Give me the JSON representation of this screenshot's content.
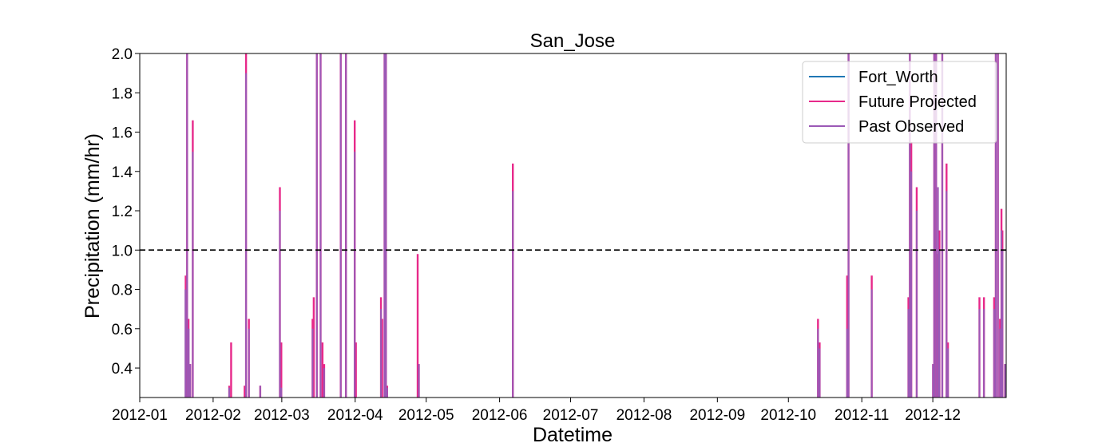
{
  "chart_data": {
    "type": "line",
    "title": "San_Jose",
    "xlabel": "Datetime",
    "ylabel": "Precipitation (mm/hr)",
    "ylim": [
      0.25,
      2.0
    ],
    "xlim_days": [
      0,
      366
    ],
    "yticks": [
      0.4,
      0.6,
      0.8,
      1.0,
      1.2,
      1.4,
      1.6,
      1.8,
      2.0
    ],
    "ytick_labels": [
      "0.4",
      "0.6",
      "0.8",
      "1.0",
      "1.2",
      "1.4",
      "1.6",
      "1.8",
      "2.0"
    ],
    "xticks_days": [
      0,
      31,
      60,
      91,
      121,
      152,
      182,
      213,
      244,
      274,
      305,
      335
    ],
    "xtick_labels": [
      "2012-01",
      "2012-02",
      "2012-03",
      "2012-04",
      "2012-05",
      "2012-06",
      "2012-07",
      "2012-08",
      "2012-09",
      "2012-10",
      "2012-11",
      "2012-12"
    ],
    "threshold": {
      "value": 1.0,
      "style": "dashed",
      "color": "#000000"
    },
    "legend_position": "top-right",
    "series": [
      {
        "name": "Fort_Worth",
        "color": "#1f77b4",
        "points": []
      },
      {
        "name": "Future Projected",
        "color": "#e7298a",
        "points": [
          [
            19.4,
            0.87
          ],
          [
            20.0,
            2.0
          ],
          [
            20.6,
            0.65
          ],
          [
            21.3,
            0.42
          ],
          [
            22.4,
            1.66
          ],
          [
            37.8,
            0.31
          ],
          [
            38.6,
            0.53
          ],
          [
            44.3,
            0.31
          ],
          [
            44.9,
            2.0
          ],
          [
            46.1,
            0.65
          ],
          [
            50.9,
            0.31
          ],
          [
            59.2,
            1.32
          ],
          [
            59.8,
            0.53
          ],
          [
            73.0,
            0.65
          ],
          [
            73.5,
            0.76
          ],
          [
            74.8,
            2.0
          ],
          [
            76.4,
            2.0
          ],
          [
            77.2,
            0.53
          ],
          [
            77.9,
            0.42
          ],
          [
            84.9,
            2.0
          ],
          [
            87.1,
            2.0
          ],
          [
            90.8,
            1.66
          ],
          [
            91.3,
            0.53
          ],
          [
            101.9,
            0.76
          ],
          [
            102.4,
            0.65
          ],
          [
            103.4,
            2.0
          ],
          [
            104.0,
            2.0
          ],
          [
            104.5,
            0.31
          ],
          [
            117.4,
            0.98
          ],
          [
            117.9,
            0.42
          ],
          [
            157.6,
            1.44
          ],
          [
            286.5,
            0.65
          ],
          [
            287.2,
            0.53
          ],
          [
            298.8,
            0.87
          ],
          [
            299.4,
            2.0
          ],
          [
            309.2,
            0.87
          ],
          [
            324.7,
            0.76
          ],
          [
            325.3,
            2.0
          ],
          [
            325.9,
            1.55
          ],
          [
            328.2,
            1.32
          ],
          [
            335.1,
            0.42
          ],
          [
            335.6,
            2.0
          ],
          [
            336.4,
            2.0
          ],
          [
            337.2,
            0.98
          ],
          [
            337.8,
            1.1
          ],
          [
            339.0,
            2.0
          ],
          [
            340.8,
            1.44
          ],
          [
            341.4,
            0.53
          ],
          [
            354.7,
            0.76
          ],
          [
            356.6,
            0.76
          ],
          [
            360.9,
            0.76
          ],
          [
            361.6,
            2.0
          ],
          [
            362.5,
            2.0
          ],
          [
            363.4,
            0.65
          ],
          [
            364.0,
            1.21
          ],
          [
            364.4,
            1.1
          ],
          [
            365.5,
            0.42
          ]
        ]
      },
      {
        "name": "Past Observed",
        "color": "#9b59b6",
        "points": [
          [
            19.3,
            0.8
          ],
          [
            20.0,
            2.0
          ],
          [
            20.7,
            0.6
          ],
          [
            21.3,
            0.42
          ],
          [
            22.4,
            1.5
          ],
          [
            37.8,
            0.3
          ],
          [
            44.9,
            1.9
          ],
          [
            46.1,
            0.6
          ],
          [
            50.9,
            0.31
          ],
          [
            59.2,
            1.2
          ],
          [
            59.8,
            0.3
          ],
          [
            73.0,
            0.6
          ],
          [
            74.8,
            2.0
          ],
          [
            76.4,
            2.0
          ],
          [
            77.9,
            0.4
          ],
          [
            84.9,
            2.0
          ],
          [
            87.1,
            2.0
          ],
          [
            90.8,
            1.5
          ],
          [
            101.9,
            0.7
          ],
          [
            103.4,
            2.0
          ],
          [
            104.0,
            2.0
          ],
          [
            104.5,
            0.3
          ],
          [
            117.9,
            0.42
          ],
          [
            157.6,
            1.3
          ],
          [
            286.5,
            0.6
          ],
          [
            287.2,
            0.5
          ],
          [
            298.8,
            0.6
          ],
          [
            299.4,
            2.0
          ],
          [
            309.2,
            0.8
          ],
          [
            324.7,
            0.7
          ],
          [
            325.3,
            2.0
          ],
          [
            325.9,
            1.4
          ],
          [
            328.2,
            1.2
          ],
          [
            335.1,
            0.42
          ],
          [
            335.6,
            2.0
          ],
          [
            336.4,
            2.0
          ],
          [
            337.2,
            1.32
          ],
          [
            337.8,
            1.0
          ],
          [
            339.0,
            2.0
          ],
          [
            340.8,
            1.3
          ],
          [
            341.4,
            0.5
          ],
          [
            354.7,
            0.7
          ],
          [
            356.6,
            0.7
          ],
          [
            360.9,
            0.7
          ],
          [
            361.6,
            2.0
          ],
          [
            362.5,
            2.0
          ],
          [
            363.4,
            0.6
          ],
          [
            364.0,
            1.1
          ],
          [
            364.4,
            1.0
          ],
          [
            365.5,
            0.42
          ]
        ]
      }
    ]
  }
}
